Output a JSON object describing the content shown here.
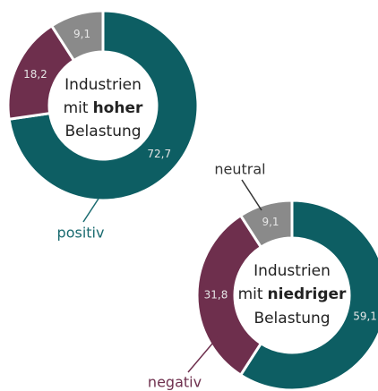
{
  "chart_data": [
    {
      "type": "pie",
      "donut": true,
      "center_text": {
        "line1": "Industrien",
        "line2_prefix": "mit",
        "line2_bold": "hoher",
        "line3": "Belastung"
      },
      "categories": [
        "positiv",
        null,
        null
      ],
      "values": [
        72.7,
        18.2,
        9.1
      ],
      "value_labels": [
        "72,7",
        "18,2",
        "9,1"
      ],
      "colors": [
        "#0d5e63",
        "#6e2f4d",
        "#8a8a8a"
      ]
    },
    {
      "type": "pie",
      "donut": true,
      "center_text": {
        "line1": "Industrien",
        "line2_prefix": "mit",
        "line2_bold": "niedriger",
        "line3": "Belastung"
      },
      "categories": [
        null,
        "negativ",
        "neutral"
      ],
      "values": [
        59.1,
        31.8,
        9.1
      ],
      "value_labels": [
        "59,1",
        "31,8",
        "9,1"
      ],
      "colors": [
        "#0d5e63",
        "#6e2f4d",
        "#8a8a8a"
      ]
    }
  ]
}
